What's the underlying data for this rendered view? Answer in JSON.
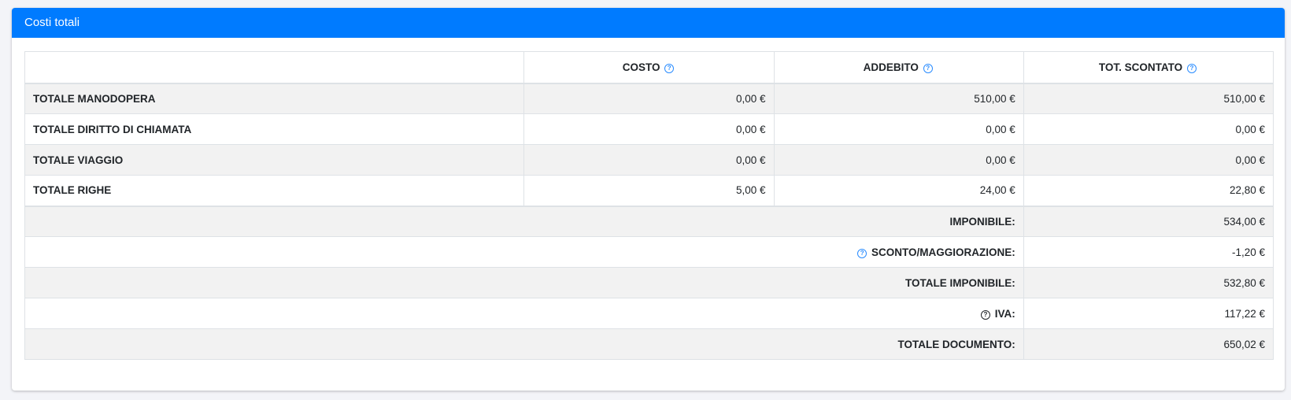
{
  "card": {
    "title": "Costi totali",
    "header_color": "#007bff"
  },
  "table": {
    "headers": [
      "",
      "COSTO",
      "ADDEBITO",
      "TOT. SCONTATO"
    ],
    "rows": [
      {
        "label": "TOTALE MANODOPERA",
        "costo": "0,00 €",
        "addebito": "510,00 €",
        "scontato": "510,00 €"
      },
      {
        "label": "TOTALE DIRITTO DI CHIAMATA",
        "costo": "0,00 €",
        "addebito": "0,00 €",
        "scontato": "0,00 €"
      },
      {
        "label": "TOTALE VIAGGIO",
        "costo": "0,00 €",
        "addebito": "0,00 €",
        "scontato": "0,00 €"
      },
      {
        "label": "TOTALE RIGHE",
        "costo": "5,00 €",
        "addebito": "24,00 €",
        "scontato": "22,80 €"
      }
    ],
    "summary": [
      {
        "label": "IMPONIBILE:",
        "value": "534,00 €"
      },
      {
        "label": "SCONTO/MAGGIORAZIONE:",
        "value": "-1,20 €",
        "icon": "help-circle-icon"
      },
      {
        "label": "TOTALE IMPONIBILE:",
        "value": "532,80 €"
      },
      {
        "label": "IVA:",
        "value": "117,22 €",
        "icon": "help-circle-icon"
      },
      {
        "label": "TOTALE DOCUMENTO:",
        "value": "650,02 €"
      }
    ]
  },
  "help_icon_glyph": "?"
}
